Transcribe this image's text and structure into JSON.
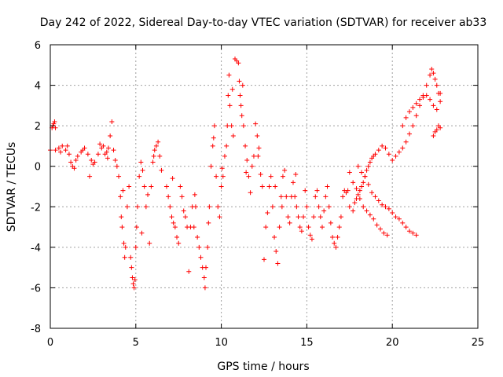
{
  "chart_data": {
    "type": "scatter",
    "title": "Day 242 of 2022, Sidereal Day-to-day VTEC variation (SDTVAR) for receiver ab33",
    "xlabel": "GPS time / hours",
    "ylabel": "SDTVAR / TECUs",
    "xlim": [
      0,
      25
    ],
    "ylim": [
      -8,
      6
    ],
    "xticks": [
      0,
      5,
      10,
      15,
      20,
      25
    ],
    "yticks": [
      -8,
      -6,
      -4,
      -2,
      0,
      2,
      4,
      6
    ],
    "grid": true,
    "marker": "+",
    "color": "#ff0000",
    "series": [
      {
        "name": "SDTVAR",
        "points": [
          [
            0.0,
            0.8
          ],
          [
            0.1,
            1.9
          ],
          [
            0.15,
            2.0
          ],
          [
            0.2,
            2.1
          ],
          [
            0.25,
            2.2
          ],
          [
            0.3,
            1.9
          ],
          [
            0.3,
            0.8
          ],
          [
            0.5,
            0.9
          ],
          [
            0.7,
            1.0
          ],
          [
            0.9,
            0.8
          ],
          [
            1.0,
            1.0
          ],
          [
            1.1,
            0.6
          ],
          [
            1.2,
            0.2
          ],
          [
            1.3,
            0.0
          ],
          [
            1.4,
            -0.1
          ],
          [
            1.5,
            0.3
          ],
          [
            1.6,
            0.5
          ],
          [
            1.8,
            0.7
          ],
          [
            2.0,
            0.9
          ],
          [
            2.2,
            0.6
          ],
          [
            2.4,
            0.3
          ],
          [
            2.5,
            0.1
          ],
          [
            2.6,
            0.2
          ],
          [
            2.8,
            0.6
          ],
          [
            3.0,
            0.9
          ],
          [
            3.1,
            1.0
          ],
          [
            3.2,
            0.6
          ],
          [
            3.3,
            0.7
          ],
          [
            3.4,
            0.9
          ],
          [
            3.5,
            1.5
          ],
          [
            3.6,
            2.2
          ],
          [
            3.7,
            0.8
          ],
          [
            3.8,
            0.3
          ],
          [
            3.9,
            0.0
          ],
          [
            4.0,
            -0.5
          ],
          [
            4.1,
            -1.5
          ],
          [
            4.15,
            -2.5
          ],
          [
            4.2,
            -3.0
          ],
          [
            4.3,
            -3.8
          ],
          [
            4.35,
            -4.5
          ],
          [
            4.4,
            -4.0
          ],
          [
            4.5,
            -2.0
          ],
          [
            4.6,
            -1.0
          ],
          [
            4.7,
            -4.5
          ],
          [
            4.75,
            -5.0
          ],
          [
            4.8,
            -5.5
          ],
          [
            4.85,
            -5.8
          ],
          [
            4.9,
            -6.0
          ],
          [
            4.95,
            -5.6
          ],
          [
            5.0,
            -4.0
          ],
          [
            5.05,
            -3.0
          ],
          [
            5.1,
            -2.0
          ],
          [
            5.2,
            -0.5
          ],
          [
            5.3,
            0.2
          ],
          [
            5.4,
            -0.2
          ],
          [
            5.5,
            -1.0
          ],
          [
            5.6,
            -2.0
          ],
          [
            5.7,
            -1.4
          ],
          [
            5.8,
            -3.8
          ],
          [
            5.9,
            -1.0
          ],
          [
            6.0,
            0.2
          ],
          [
            6.05,
            0.5
          ],
          [
            6.1,
            0.8
          ],
          [
            6.2,
            1.0
          ],
          [
            6.3,
            1.2
          ],
          [
            6.4,
            0.5
          ],
          [
            6.5,
            -0.2
          ],
          [
            6.8,
            -1.0
          ],
          [
            6.9,
            -1.5
          ],
          [
            7.0,
            -2.0
          ],
          [
            7.1,
            -2.5
          ],
          [
            7.2,
            -2.8
          ],
          [
            7.3,
            -3.0
          ],
          [
            7.4,
            -3.5
          ],
          [
            7.5,
            -3.8
          ],
          [
            7.6,
            -1.0
          ],
          [
            7.7,
            -1.5
          ],
          [
            7.8,
            -2.2
          ],
          [
            7.9,
            -2.5
          ],
          [
            8.0,
            -3.0
          ],
          [
            8.1,
            -5.2
          ],
          [
            8.2,
            -3.0
          ],
          [
            8.3,
            -2.0
          ],
          [
            8.4,
            -3.0
          ],
          [
            8.5,
            -2.0
          ],
          [
            8.6,
            -3.5
          ],
          [
            8.7,
            -4.0
          ],
          [
            8.8,
            -4.5
          ],
          [
            8.9,
            -5.0
          ],
          [
            9.0,
            -5.5
          ],
          [
            9.05,
            -6.0
          ],
          [
            9.1,
            -5.0
          ],
          [
            9.2,
            -4.0
          ],
          [
            9.3,
            -2.0
          ],
          [
            9.4,
            0.0
          ],
          [
            9.5,
            1.0
          ],
          [
            9.6,
            2.0
          ],
          [
            9.7,
            -0.5
          ],
          [
            9.8,
            -2.0
          ],
          [
            9.9,
            -2.5
          ],
          [
            10.0,
            -1.0
          ],
          [
            10.1,
            -0.5
          ],
          [
            10.2,
            0.5
          ],
          [
            10.3,
            1.0
          ],
          [
            10.35,
            2.0
          ],
          [
            10.4,
            3.5
          ],
          [
            10.45,
            4.5
          ],
          [
            10.5,
            3.0
          ],
          [
            10.6,
            2.0
          ],
          [
            10.7,
            1.5
          ],
          [
            10.8,
            5.3
          ],
          [
            10.9,
            5.2
          ],
          [
            11.0,
            5.1
          ],
          [
            11.05,
            4.2
          ],
          [
            11.1,
            3.5
          ],
          [
            11.15,
            3.0
          ],
          [
            11.2,
            2.5
          ],
          [
            11.3,
            2.0
          ],
          [
            11.4,
            1.0
          ],
          [
            11.5,
            0.3
          ],
          [
            11.6,
            -0.5
          ],
          [
            11.7,
            -1.3
          ],
          [
            11.8,
            0.0
          ],
          [
            11.9,
            0.5
          ],
          [
            12.0,
            2.1
          ],
          [
            12.1,
            1.5
          ],
          [
            12.2,
            0.9
          ],
          [
            12.3,
            -0.4
          ],
          [
            12.4,
            -1.0
          ],
          [
            12.5,
            -4.6
          ],
          [
            12.6,
            -3.0
          ],
          [
            12.7,
            -2.3
          ],
          [
            12.8,
            -1.0
          ],
          [
            12.9,
            -0.5
          ],
          [
            13.0,
            -2.0
          ],
          [
            13.1,
            -3.5
          ],
          [
            13.2,
            -4.2
          ],
          [
            13.3,
            -4.8
          ],
          [
            13.4,
            -3.0
          ],
          [
            13.5,
            -1.5
          ],
          [
            13.6,
            -0.5
          ],
          [
            13.7,
            -0.2
          ],
          [
            13.8,
            -1.5
          ],
          [
            13.9,
            -2.5
          ],
          [
            14.0,
            -2.8
          ],
          [
            14.1,
            -1.5
          ],
          [
            14.2,
            -0.8
          ],
          [
            14.3,
            -1.5
          ],
          [
            14.4,
            -2.0
          ],
          [
            14.5,
            -2.5
          ],
          [
            14.6,
            -3.0
          ],
          [
            14.7,
            -3.2
          ],
          [
            14.8,
            -2.5
          ],
          [
            14.9,
            -1.2
          ],
          [
            15.0,
            -2.0
          ],
          [
            15.1,
            -3.0
          ],
          [
            15.2,
            -3.4
          ],
          [
            15.3,
            -3.6
          ],
          [
            15.4,
            -2.5
          ],
          [
            15.5,
            -1.5
          ],
          [
            15.6,
            -1.2
          ],
          [
            15.7,
            -2.0
          ],
          [
            15.8,
            -2.5
          ],
          [
            15.9,
            -3.0
          ],
          [
            16.0,
            -2.2
          ],
          [
            16.1,
            -1.5
          ],
          [
            16.2,
            -1.0
          ],
          [
            16.3,
            -2.0
          ],
          [
            16.4,
            -2.8
          ],
          [
            16.5,
            -3.5
          ],
          [
            16.6,
            -3.8
          ],
          [
            16.7,
            -4.0
          ],
          [
            16.8,
            -3.5
          ],
          [
            16.9,
            -3.0
          ],
          [
            17.0,
            -2.5
          ],
          [
            17.1,
            -1.5
          ],
          [
            17.2,
            -1.2
          ],
          [
            17.3,
            -1.3
          ],
          [
            17.4,
            -1.2
          ],
          [
            17.5,
            -2.0
          ],
          [
            17.7,
            -2.2
          ],
          [
            17.8,
            -1.8
          ],
          [
            17.9,
            -1.6
          ],
          [
            18.0,
            -1.4
          ],
          [
            18.1,
            -1.2
          ],
          [
            18.2,
            -1.0
          ],
          [
            18.3,
            -0.8
          ],
          [
            18.4,
            -0.5
          ],
          [
            18.5,
            -0.2
          ],
          [
            18.6,
            0.0
          ],
          [
            18.7,
            0.2
          ],
          [
            18.8,
            0.4
          ],
          [
            18.9,
            0.5
          ],
          [
            19.0,
            0.6
          ],
          [
            19.2,
            0.8
          ],
          [
            19.4,
            1.0
          ],
          [
            19.6,
            0.9
          ],
          [
            19.8,
            0.6
          ],
          [
            20.0,
            0.3
          ],
          [
            20.2,
            0.5
          ],
          [
            20.4,
            0.7
          ],
          [
            20.6,
            0.9
          ],
          [
            20.8,
            1.2
          ],
          [
            21.0,
            1.6
          ],
          [
            21.2,
            2.0
          ],
          [
            21.4,
            2.5
          ],
          [
            21.6,
            3.0
          ],
          [
            21.8,
            3.5
          ],
          [
            22.0,
            4.0
          ],
          [
            22.2,
            4.5
          ],
          [
            22.3,
            4.8
          ],
          [
            22.4,
            4.6
          ],
          [
            22.5,
            4.3
          ],
          [
            22.6,
            4.0
          ],
          [
            22.7,
            3.6
          ],
          [
            22.8,
            3.2
          ],
          [
            22.4,
            1.5
          ],
          [
            22.5,
            1.7
          ],
          [
            22.6,
            1.8
          ],
          [
            22.7,
            2.0
          ],
          [
            22.8,
            1.9
          ],
          [
            20.6,
            2.0
          ],
          [
            20.8,
            2.4
          ],
          [
            21.0,
            2.7
          ],
          [
            21.2,
            2.9
          ],
          [
            21.4,
            3.1
          ],
          [
            21.6,
            3.3
          ],
          [
            21.8,
            3.4
          ],
          [
            22.0,
            3.5
          ],
          [
            22.2,
            3.3
          ],
          [
            22.4,
            3.0
          ],
          [
            22.6,
            2.8
          ],
          [
            22.8,
            3.6
          ],
          [
            18.0,
            0.0
          ],
          [
            18.2,
            -0.3
          ],
          [
            18.4,
            -0.5
          ],
          [
            18.6,
            -0.9
          ],
          [
            18.8,
            -1.3
          ],
          [
            19.0,
            -1.5
          ],
          [
            19.2,
            -1.7
          ],
          [
            19.4,
            -1.9
          ],
          [
            19.6,
            -2.0
          ],
          [
            19.8,
            -2.1
          ],
          [
            20.0,
            -2.3
          ],
          [
            20.2,
            -2.5
          ],
          [
            20.4,
            -2.6
          ],
          [
            20.6,
            -2.8
          ],
          [
            20.8,
            -3.0
          ],
          [
            21.0,
            -3.2
          ],
          [
            21.2,
            -3.3
          ],
          [
            21.4,
            -3.4
          ],
          [
            17.5,
            -0.3
          ],
          [
            17.7,
            -0.8
          ],
          [
            17.9,
            -1.1
          ],
          [
            18.1,
            -1.6
          ],
          [
            18.3,
            -2.0
          ],
          [
            18.5,
            -2.2
          ],
          [
            18.7,
            -2.4
          ],
          [
            18.9,
            -2.6
          ],
          [
            19.1,
            -2.9
          ],
          [
            19.3,
            -3.1
          ],
          [
            19.5,
            -3.3
          ],
          [
            19.7,
            -3.4
          ],
          [
            2.3,
            -0.5
          ],
          [
            2.9,
            1.1
          ],
          [
            3.35,
            0.4
          ],
          [
            0.6,
            0.7
          ],
          [
            1.9,
            0.8
          ],
          [
            4.25,
            -1.2
          ],
          [
            5.35,
            -3.3
          ],
          [
            7.15,
            -0.6
          ],
          [
            8.45,
            -1.4
          ],
          [
            9.25,
            -2.8
          ],
          [
            9.55,
            1.4
          ],
          [
            10.05,
            -0.1
          ],
          [
            10.65,
            3.8
          ],
          [
            11.25,
            4.0
          ],
          [
            11.45,
            -0.3
          ],
          [
            12.15,
            0.5
          ],
          [
            13.15,
            -1.0
          ],
          [
            13.55,
            -2.0
          ],
          [
            14.35,
            -0.4
          ]
        ]
      }
    ]
  }
}
